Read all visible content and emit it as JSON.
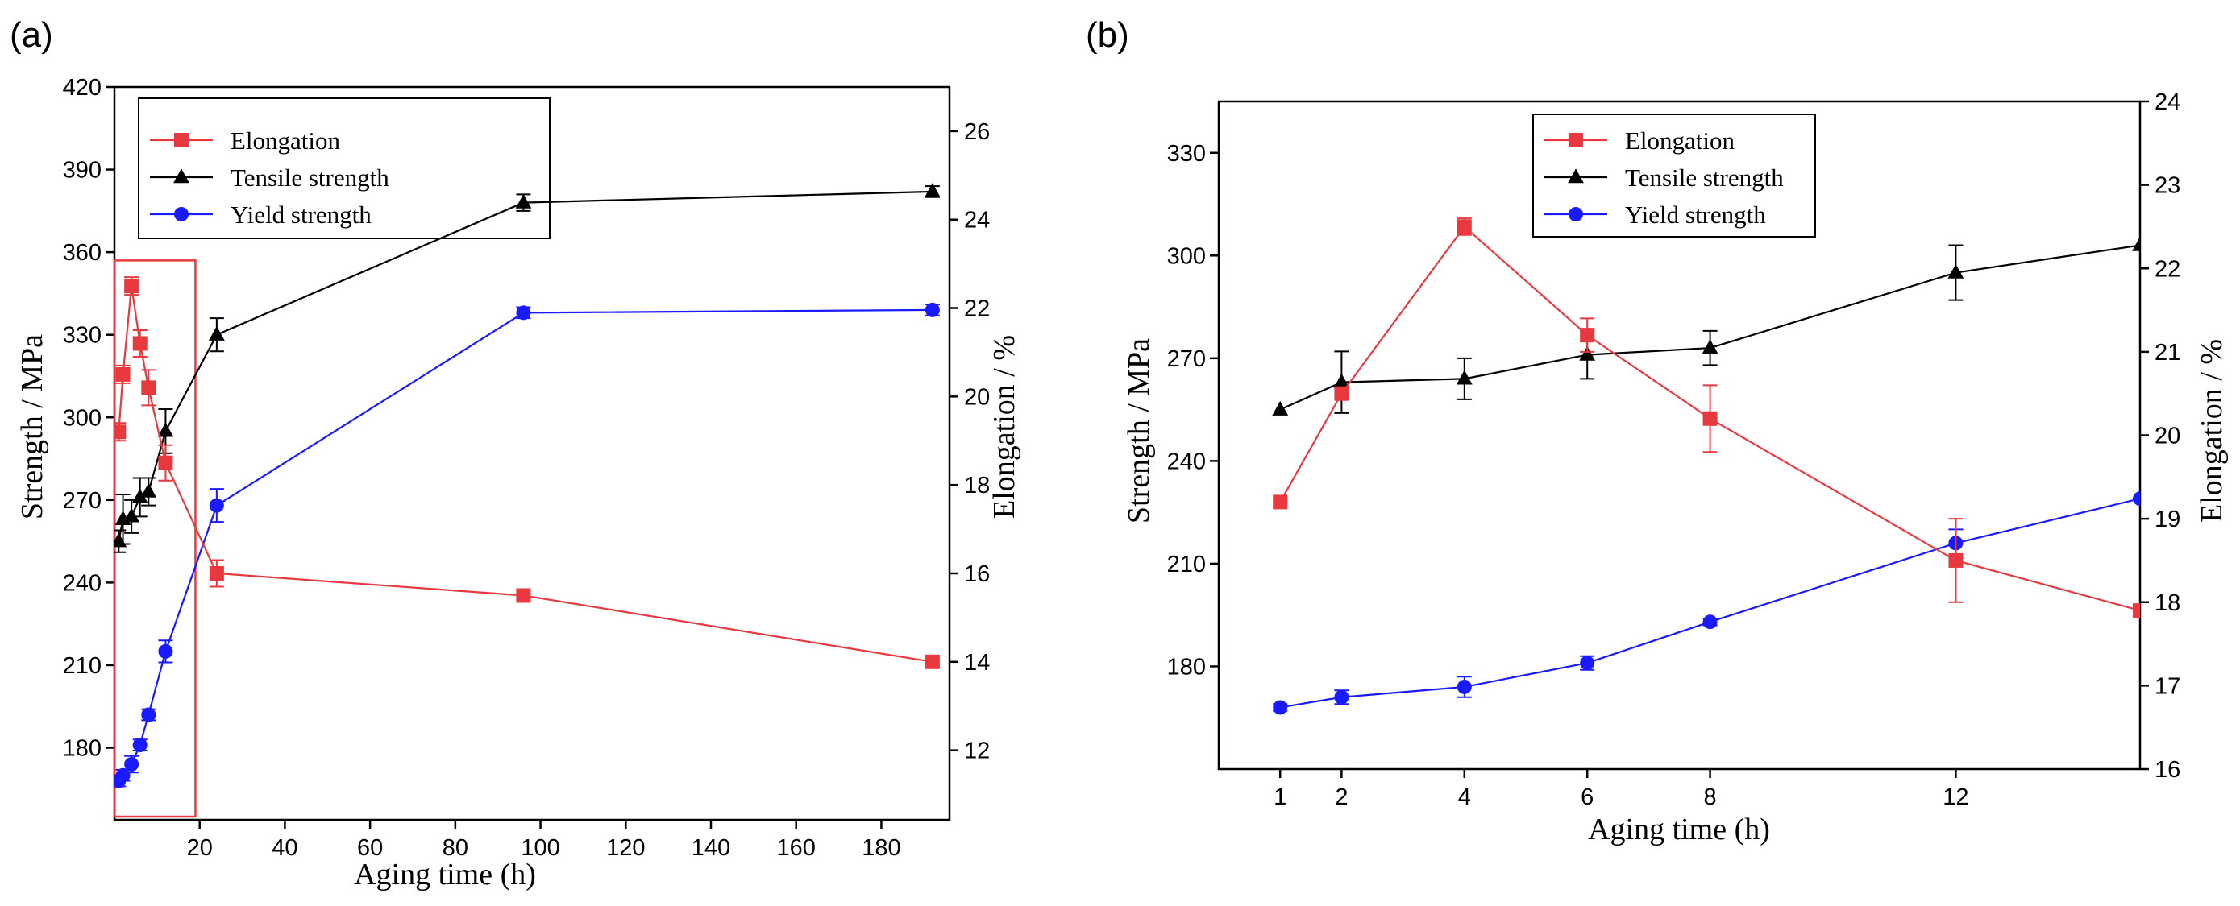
{
  "colors": {
    "elongation": "#e8393f",
    "tensile": "#000000",
    "yield": "#1a1aff",
    "highlight": "#e8393f"
  },
  "chart_data": [
    {
      "panel_label": "(a)",
      "type": "line",
      "xlabel": "Aging time (h)",
      "ylabel": "Strength / MPa",
      "y2label": "Elongation / %",
      "xlim": [
        0,
        196
      ],
      "xticks": [
        20,
        40,
        60,
        80,
        100,
        120,
        140,
        160,
        180
      ],
      "ylim": [
        155,
        420
      ],
      "yticks": [
        180,
        210,
        240,
        270,
        300,
        330,
        360,
        390,
        420
      ],
      "y2lim": [
        10.5,
        27
      ],
      "y2ticks": [
        12,
        14,
        16,
        18,
        20,
        22,
        24,
        26
      ],
      "legend": [
        "Elongation",
        "Tensile strength",
        "Yield strength"
      ],
      "legend_position": "top-left",
      "highlight_region": {
        "x": [
          0,
          19
        ],
        "y": [
          155,
          357
        ]
      },
      "series": [
        {
          "name": "Elongation",
          "axis": "right",
          "color_key": "elongation",
          "marker": "square",
          "x": [
            1,
            2,
            4,
            6,
            8,
            12,
            24,
            96,
            192
          ],
          "y": [
            19.2,
            20.5,
            22.5,
            21.2,
            20.2,
            18.5,
            16.0,
            15.5,
            14.0
          ],
          "err": [
            0.2,
            0.2,
            0.2,
            0.3,
            0.4,
            0.4,
            0.3,
            0.1,
            0.1
          ]
        },
        {
          "name": "Tensile strength",
          "axis": "left",
          "color_key": "tensile",
          "marker": "triangle",
          "x": [
            1,
            2,
            4,
            6,
            8,
            12,
            24,
            96,
            192
          ],
          "y": [
            255,
            263,
            264,
            271,
            273,
            295,
            330,
            378,
            382
          ],
          "err": [
            4,
            9,
            6,
            7,
            5,
            8,
            6,
            3,
            2
          ]
        },
        {
          "name": "Yield strength",
          "axis": "left",
          "color_key": "yield",
          "marker": "circle",
          "x": [
            1,
            2,
            4,
            6,
            8,
            12,
            24,
            96,
            192
          ],
          "y": [
            168,
            170,
            174,
            181,
            192,
            215,
            268,
            338,
            339
          ],
          "err": [
            2,
            2,
            3,
            2,
            2,
            4,
            6,
            2,
            2
          ]
        }
      ]
    },
    {
      "panel_label": "(b)",
      "type": "line",
      "xlabel": "Aging time (h)",
      "ylabel": "Strength / MPa",
      "y2label": "Elongation / %",
      "xlim": [
        0,
        15
      ],
      "xticks": [
        1,
        2,
        4,
        6,
        8,
        12
      ],
      "ylim": [
        150,
        345
      ],
      "yticks": [
        180,
        210,
        240,
        270,
        300,
        330
      ],
      "y2lim": [
        16,
        24
      ],
      "y2ticks": [
        16,
        17,
        18,
        19,
        20,
        21,
        22,
        23,
        24
      ],
      "legend": [
        "Elongation",
        "Tensile strength",
        "Yield strength"
      ],
      "legend_position": "top-center",
      "series": [
        {
          "name": "Elongation",
          "axis": "right",
          "color_key": "elongation",
          "marker": "square",
          "x": [
            1,
            2,
            4,
            6,
            8,
            12,
            15
          ],
          "y": [
            19.2,
            20.5,
            22.5,
            21.2,
            20.2,
            18.5,
            17.9
          ],
          "err": [
            0,
            0,
            0.1,
            0.2,
            0.4,
            0.5,
            null
          ]
        },
        {
          "name": "Tensile strength",
          "axis": "left",
          "color_key": "tensile",
          "marker": "triangle",
          "x": [
            1,
            2,
            4,
            6,
            8,
            12,
            15
          ],
          "y": [
            255,
            263,
            264,
            271,
            273,
            295,
            303
          ],
          "err": [
            0,
            9,
            6,
            7,
            5,
            8,
            null
          ]
        },
        {
          "name": "Yield strength",
          "axis": "left",
          "color_key": "yield",
          "marker": "circle",
          "x": [
            1,
            2,
            4,
            6,
            8,
            12,
            15
          ],
          "y": [
            168,
            171,
            174,
            181,
            193,
            216,
            229
          ],
          "err": [
            1,
            2,
            3,
            2,
            1,
            4,
            null
          ]
        }
      ]
    }
  ]
}
